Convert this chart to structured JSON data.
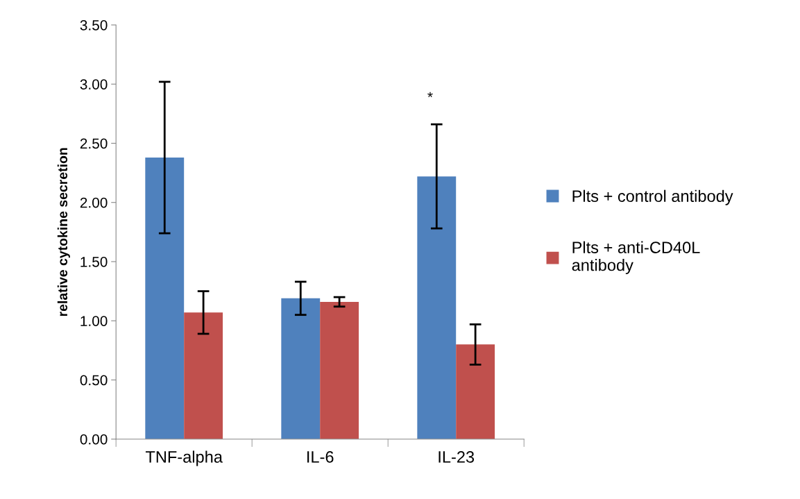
{
  "chart_data": {
    "type": "bar",
    "ylabel": "relative cytokine secretion",
    "categories": [
      "TNF-alpha",
      "IL-6",
      "IL-23"
    ],
    "series": [
      {
        "name": "Plts + control antibody",
        "color": "#4f81bd",
        "values": [
          2.38,
          1.19,
          2.22
        ],
        "errors": [
          0.64,
          0.14,
          0.44
        ]
      },
      {
        "name": "Plts + anti-CD40L\nantibody",
        "color": "#c0504d",
        "values": [
          1.07,
          1.16,
          0.8
        ],
        "errors": [
          0.18,
          0.04,
          0.17
        ]
      }
    ],
    "annotations": [
      "*"
    ],
    "ylim": [
      0,
      3.5
    ],
    "yticks": [
      {
        "value": 0,
        "label": "0.00"
      },
      {
        "value": 0.5,
        "label": "0.50"
      },
      {
        "value": 1,
        "label": "1.00"
      },
      {
        "value": 1.5,
        "label": "1.50"
      },
      {
        "value": 2,
        "label": "2.00"
      },
      {
        "value": 2.5,
        "label": "2.50"
      },
      {
        "value": 3,
        "label": "3.00"
      },
      {
        "value": 3.5,
        "label": "3.50"
      }
    ],
    "grid": false,
    "legend": "right"
  }
}
